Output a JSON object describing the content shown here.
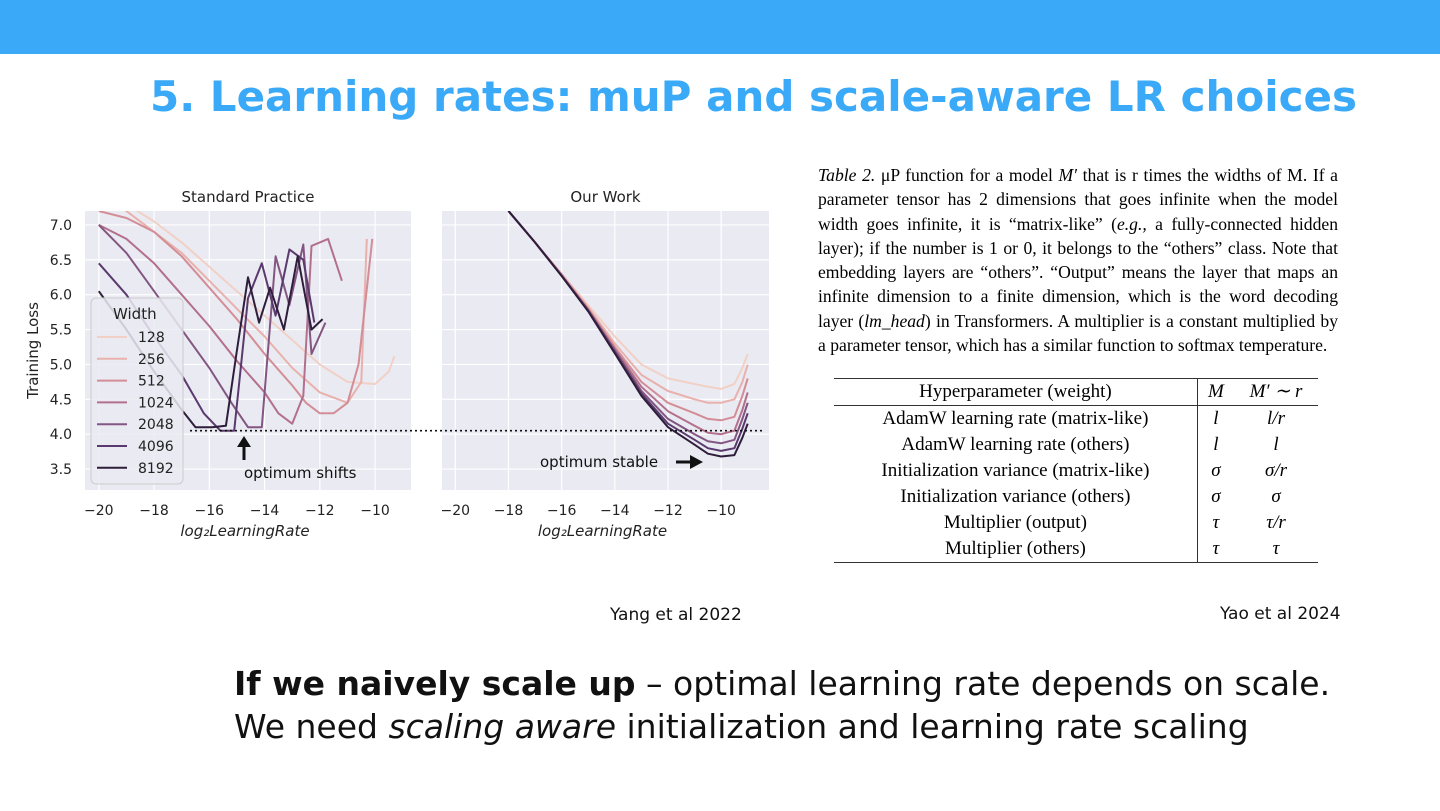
{
  "slide": {
    "title": "5. Learning rates: muP and scale-aware LR choices",
    "accent_color": "#3aa9f7",
    "citation_left": "Yang et al 2022",
    "citation_right": "Yao et al 2024",
    "body_line1": {
      "bold": "If we naively scale up",
      "rest": " – optimal learning rate depends on scale."
    },
    "body_line2": {
      "pre": "We need ",
      "italic": "scaling aware",
      "post": " initialization and learning rate scaling"
    }
  },
  "chart_data": [
    {
      "type": "line",
      "title": "Standard Practice",
      "xlabel": "log₂LearningRate",
      "ylabel": "Training Loss",
      "xlim": [
        -20.5,
        -8.7
      ],
      "ylim": [
        3.2,
        7.2
      ],
      "xticks": [
        -20,
        -18,
        -16,
        -14,
        -12,
        -10
      ],
      "yticks": [
        3.5,
        4.0,
        4.5,
        5.0,
        5.5,
        6.0,
        6.5,
        7.0
      ],
      "grid": true,
      "legend": {
        "title": "Width",
        "position": "center-left"
      },
      "reference_line": 4.05,
      "annotation": "optimum shifts",
      "series": [
        {
          "name": "128",
          "color": "#f1d0c6",
          "x": [
            -20,
            -19,
            -18,
            -17,
            -16,
            -15,
            -14,
            -13,
            -12,
            -11,
            -10,
            -9.5,
            -9.3
          ],
          "y": [
            7.5,
            7.3,
            7.05,
            6.75,
            6.4,
            6.05,
            5.7,
            5.35,
            5.0,
            4.75,
            4.72,
            4.9,
            5.12
          ]
        },
        {
          "name": "256",
          "color": "#e8b1ac",
          "x": [
            -20,
            -19,
            -18,
            -17,
            -16,
            -15,
            -14,
            -13,
            -12,
            -11,
            -10.5,
            -10.3
          ],
          "y": [
            7.4,
            7.2,
            6.9,
            6.6,
            6.2,
            5.8,
            5.4,
            4.95,
            4.6,
            4.45,
            4.75,
            6.8
          ]
        },
        {
          "name": "512",
          "color": "#d38d96",
          "x": [
            -20,
            -19,
            -18,
            -17,
            -16,
            -15,
            -14,
            -13,
            -12.5,
            -12,
            -11.5,
            -11,
            -10.6,
            -10.1
          ],
          "y": [
            7.2,
            7.1,
            6.9,
            6.55,
            6.1,
            5.65,
            5.15,
            4.7,
            4.45,
            4.3,
            4.3,
            4.45,
            5.0,
            6.8
          ]
        },
        {
          "name": "1024",
          "color": "#b2708c",
          "x": [
            -20,
            -19,
            -18,
            -17,
            -16,
            -15,
            -14,
            -13.5,
            -13,
            -12.6,
            -12.3,
            -11.7,
            -11.2
          ],
          "y": [
            7.0,
            6.8,
            6.45,
            6.0,
            5.55,
            5.05,
            4.6,
            4.3,
            4.15,
            4.55,
            6.7,
            6.8,
            6.2
          ]
        },
        {
          "name": "2048",
          "color": "#835681",
          "x": [
            -20,
            -19,
            -18,
            -17,
            -16,
            -15.2,
            -14.6,
            -14.1,
            -13.6,
            -13.1,
            -12.6,
            -12.3,
            -11.8
          ],
          "y": [
            7.0,
            6.6,
            6.05,
            5.5,
            4.95,
            4.45,
            4.1,
            4.1,
            6.55,
            5.85,
            6.72,
            5.15,
            5.6
          ]
        },
        {
          "name": "4096",
          "color": "#5a3a6e",
          "x": [
            -20,
            -19,
            -18,
            -17,
            -16.2,
            -15.6,
            -15.1,
            -14.6,
            -14.1,
            -13.6,
            -13.1,
            -12.6,
            -12.2
          ],
          "y": [
            6.45,
            6.0,
            5.4,
            4.85,
            4.3,
            4.05,
            4.05,
            5.95,
            6.45,
            5.7,
            6.65,
            6.5,
            5.6
          ]
        },
        {
          "name": "8192",
          "color": "#2e1e3b",
          "x": [
            -20,
            -19,
            -18,
            -17,
            -16.5,
            -15.9,
            -15.4,
            -15.0,
            -14.6,
            -14.2,
            -13.8,
            -13.3,
            -12.8,
            -12.3,
            -11.9
          ],
          "y": [
            6.05,
            5.5,
            4.9,
            4.35,
            4.1,
            4.1,
            4.12,
            5.2,
            6.25,
            5.6,
            6.1,
            5.5,
            6.55,
            5.5,
            5.65
          ]
        }
      ]
    },
    {
      "type": "line",
      "title": "Our Work",
      "xlabel": "log₂LearningRate",
      "ylabel": "",
      "xlim": [
        -20.5,
        -8.2
      ],
      "ylim": [
        3.2,
        7.2
      ],
      "xticks": [
        -20,
        -18,
        -16,
        -14,
        -12,
        -10
      ],
      "grid": true,
      "reference_line": 4.05,
      "annotation": "optimum stable",
      "series": [
        {
          "name": "128",
          "color": "#f1d0c6",
          "x": [
            -18,
            -17,
            -16,
            -15,
            -14,
            -13,
            -12,
            -11,
            -10.5,
            -10,
            -9.5,
            -9.2,
            -9.0
          ],
          "y": [
            7.2,
            6.75,
            6.3,
            5.85,
            5.4,
            5.0,
            4.8,
            4.72,
            4.68,
            4.65,
            4.72,
            4.95,
            5.15
          ]
        },
        {
          "name": "256",
          "color": "#e8b1ac",
          "x": [
            -18,
            -17,
            -16,
            -15,
            -14,
            -13,
            -12,
            -11,
            -10.5,
            -10,
            -9.5,
            -9.2,
            -9.0
          ],
          "y": [
            7.2,
            6.75,
            6.3,
            5.82,
            5.3,
            4.85,
            4.62,
            4.5,
            4.45,
            4.45,
            4.5,
            4.75,
            5.0
          ]
        },
        {
          "name": "512",
          "color": "#d38d96",
          "x": [
            -18,
            -17,
            -16,
            -15,
            -14,
            -13,
            -12,
            -11,
            -10.5,
            -10,
            -9.5,
            -9.2,
            -9.0
          ],
          "y": [
            7.2,
            6.75,
            6.28,
            5.8,
            5.25,
            4.75,
            4.45,
            4.3,
            4.22,
            4.2,
            4.25,
            4.55,
            4.8
          ]
        },
        {
          "name": "1024",
          "color": "#b2708c",
          "x": [
            -18,
            -17,
            -16,
            -15,
            -14,
            -13,
            -12,
            -11,
            -10.5,
            -10,
            -9.5,
            -9.2,
            -9.0
          ],
          "y": [
            7.2,
            6.75,
            6.28,
            5.78,
            5.22,
            4.68,
            4.33,
            4.12,
            4.02,
            4.0,
            4.05,
            4.35,
            4.6
          ]
        },
        {
          "name": "2048",
          "color": "#835681",
          "x": [
            -18,
            -17,
            -16,
            -15,
            -14,
            -13,
            -12,
            -11,
            -10.5,
            -10,
            -9.5,
            -9.2,
            -9.0
          ],
          "y": [
            7.2,
            6.75,
            6.28,
            5.78,
            5.2,
            4.62,
            4.22,
            4.0,
            3.9,
            3.87,
            3.92,
            4.22,
            4.45
          ]
        },
        {
          "name": "4096",
          "color": "#5a3a6e",
          "x": [
            -18,
            -17,
            -16,
            -15,
            -14,
            -13,
            -12,
            -11,
            -10.5,
            -10,
            -9.5,
            -9.2,
            -9.0
          ],
          "y": [
            7.2,
            6.75,
            6.27,
            5.77,
            5.18,
            4.58,
            4.15,
            3.92,
            3.8,
            3.76,
            3.8,
            4.08,
            4.3
          ]
        },
        {
          "name": "8192",
          "color": "#2e1e3b",
          "x": [
            -18,
            -17,
            -16,
            -15,
            -14,
            -13,
            -12,
            -11,
            -10.5,
            -10,
            -9.5,
            -9.2,
            -9.0
          ],
          "y": [
            7.2,
            6.75,
            6.27,
            5.76,
            5.16,
            4.55,
            4.1,
            3.85,
            3.72,
            3.68,
            3.7,
            3.95,
            4.15
          ]
        }
      ]
    }
  ],
  "caption": {
    "label": "Table 2.",
    "text_a": " μP function for a model ",
    "math_a": "M′",
    "text_b": " that is r times the widths of M. If a parameter tensor has 2 dimensions that goes infinite when the model width goes infinite, it is “matrix-like” (",
    "eg": "e.g.,",
    "text_c": " a fully-connected hidden layer); if the number is 1 or 0, it belongs to the “others” class.  Note that embedding layers are “others”. “Output” means the layer that maps an infinite dimension to a finite dimension, which is the word decoding layer (",
    "math_b": "lm_head",
    "text_d": ") in Transformers. A multiplier is a constant multiplied by a parameter tensor, which has a similar function to softmax temperature."
  },
  "table": {
    "headers": [
      "Hyperparameter (weight)",
      "M",
      "M′ ∼ r"
    ],
    "rows": [
      [
        "AdamW learning rate (matrix-like)",
        "l",
        "l/r"
      ],
      [
        "AdamW learning rate (others)",
        "l",
        "l"
      ],
      [
        "Initialization variance (matrix-like)",
        "σ",
        "σ/r"
      ],
      [
        "Initialization variance (others)",
        "σ",
        "σ"
      ],
      [
        "Multiplier (output)",
        "τ",
        "τ/r"
      ],
      [
        "Multiplier (others)",
        "τ",
        "τ"
      ]
    ]
  }
}
